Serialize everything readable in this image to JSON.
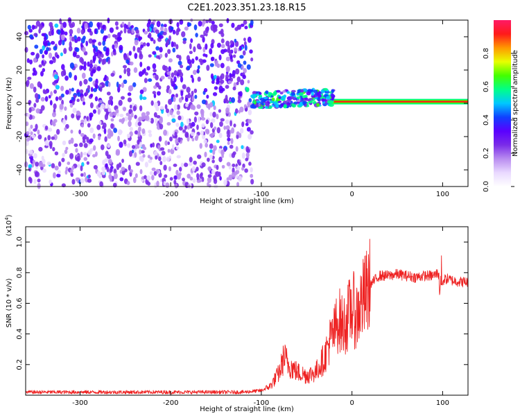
{
  "title": "C2E1.2023.351.23.18.R15",
  "colors": {
    "snr_line": "#ee2222",
    "background": "#ffffff",
    "colormap": [
      "#ffffff",
      "#e9d9ff",
      "#b98cf0",
      "#7a2ce8",
      "#5a00ff",
      "#1040ff",
      "#00c8ff",
      "#00ff88",
      "#44ff00",
      "#e8ff00",
      "#ff9900",
      "#ff1a1a",
      "#ff1a66"
    ]
  },
  "chart_data": [
    {
      "type": "heatmap",
      "title": "",
      "xlabel": "Height of straight line (km)",
      "ylabel": "Frequency (Hz)",
      "xlim": [
        -360,
        128
      ],
      "ylim": [
        -50,
        50
      ],
      "x_ticks": [
        -300,
        -200,
        -100,
        0,
        100
      ],
      "x_tick_labels": [
        "-300",
        "-200",
        "-100",
        "0",
        "100"
      ],
      "y_ticks": [
        -40,
        -20,
        0,
        20,
        40
      ],
      "y_tick_labels": [
        "-40",
        "-20",
        "0",
        "20",
        "40"
      ],
      "grid": false,
      "colorbar": {
        "label": "Normalized spectral amplitude",
        "range": [
          0,
          1
        ],
        "ticks": [
          0.0,
          0.2,
          0.4,
          0.6,
          0.8
        ],
        "tick_labels": [
          "0.0",
          "0.2",
          "0.4",
          "0.6",
          "0.8"
        ]
      },
      "regions": [
        {
          "x_range": [
            -360,
            -110
          ],
          "description": "broadband noise, amplitude approx 0.1-0.3, denser at positive frequency"
        },
        {
          "x_range": [
            -110,
            -20
          ],
          "frequency_hz": 2,
          "amplitude": 0.5
        },
        {
          "x_range": [
            -20,
            128
          ],
          "frequency_hz": 1,
          "amplitude": 0.95
        }
      ]
    },
    {
      "type": "line",
      "title": "",
      "xlabel": "Height of straight line (km)",
      "ylabel": "SNR (10 * v/v)",
      "y_multiplier_label": "(x10",
      "y_multiplier_exp": "4",
      "y_multiplier_close": ")",
      "xlim": [
        -360,
        128
      ],
      "ylim": [
        0,
        1.1
      ],
      "x_ticks": [
        -300,
        -200,
        -100,
        0,
        100
      ],
      "x_tick_labels": [
        "-300",
        "-200",
        "-100",
        "0",
        "100"
      ],
      "y_ticks": [
        0.2,
        0.4,
        0.6,
        0.8,
        1.0
      ],
      "y_tick_labels": [
        "0.2",
        "0.4",
        "0.6",
        "0.8",
        "1.0"
      ],
      "grid": false,
      "series": [
        {
          "x": [
            -360,
            -300,
            -200,
            -120,
            -100,
            -90,
            -80,
            -75,
            -70,
            -60,
            -50,
            -40,
            -30,
            -25,
            -20,
            -15,
            -10,
            -5,
            0,
            5,
            10,
            15,
            20,
            25,
            30,
            40,
            50,
            60,
            70,
            80,
            90,
            95,
            98,
            100,
            105,
            110,
            120,
            128
          ],
          "y": [
            0.02,
            0.02,
            0.02,
            0.02,
            0.03,
            0.06,
            0.15,
            0.25,
            0.2,
            0.15,
            0.13,
            0.15,
            0.25,
            0.35,
            0.4,
            0.5,
            0.45,
            0.5,
            0.58,
            0.52,
            0.6,
            0.65,
            0.72,
            0.75,
            0.78,
            0.78,
            0.79,
            0.78,
            0.77,
            0.78,
            0.78,
            0.8,
            0.7,
            0.75,
            0.76,
            0.75,
            0.74,
            0.74
          ]
        }
      ]
    }
  ]
}
